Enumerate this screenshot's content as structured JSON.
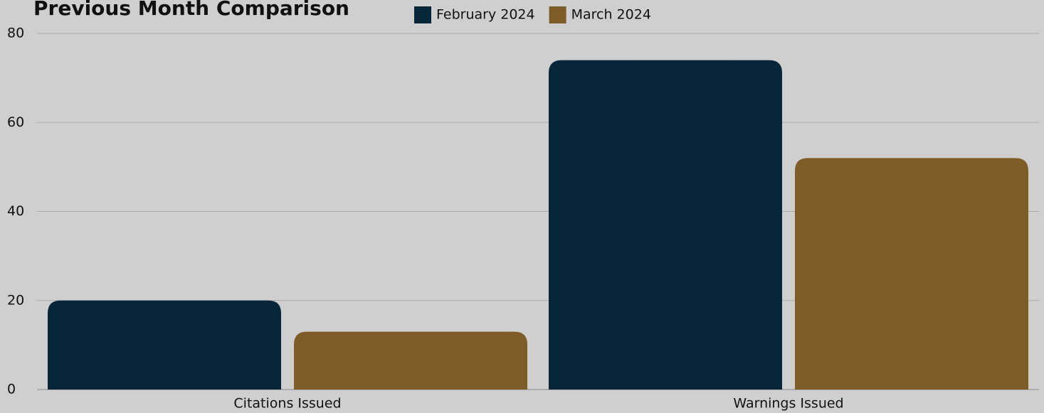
{
  "chart_data": {
    "type": "bar",
    "title": "Previous Month Comparison",
    "categories": [
      "Citations Issued",
      "Warnings Issued"
    ],
    "series": [
      {
        "name": "February 2024",
        "color": "#08263a",
        "values": [
          20,
          74
        ]
      },
      {
        "name": "March 2024",
        "color": "#7e5c27",
        "values": [
          13,
          52
        ]
      }
    ],
    "ylim": [
      0,
      80
    ],
    "yticks": [
      0,
      20,
      40,
      60,
      80
    ],
    "grid": true,
    "legend": "top"
  }
}
